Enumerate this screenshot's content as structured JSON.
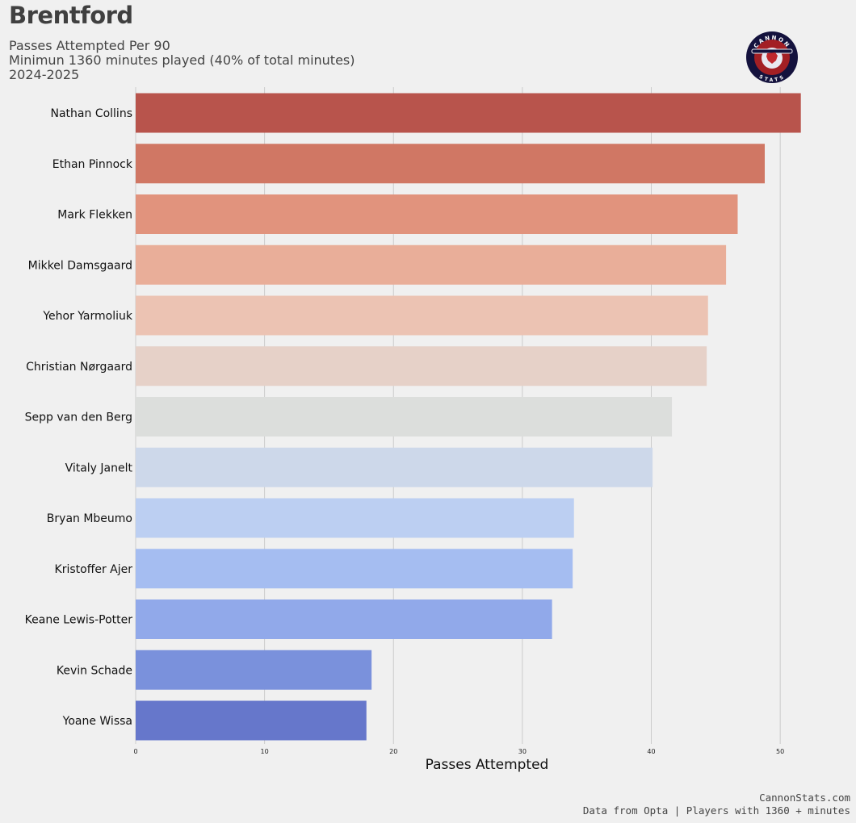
{
  "header": {
    "title": "Brentford",
    "subtitle_lines": [
      "Passes Attempted Per 90",
      "Minimun 1360 minutes played (40% of total minutes)",
      "2024-2025"
    ]
  },
  "logo": {
    "top_text": "CANNON",
    "bottom_text": "STATS",
    "colors": {
      "outer": "#14123d",
      "ring": "#a31f24",
      "inner": "#e8e8f0"
    }
  },
  "footer": {
    "line1": "CannonStats.com",
    "line2": "Data from Opta | Players with 1360 + minutes"
  },
  "chart_data": {
    "type": "bar",
    "orientation": "horizontal",
    "title": "Passes Attempted Per 90",
    "xlabel": "Passes Attempted",
    "ylabel": "",
    "xlim": [
      0,
      54
    ],
    "xticks": [
      0,
      10,
      20,
      30,
      40,
      50
    ],
    "grid": "vertical",
    "categories": [
      "Nathan Collins",
      "Ethan Pinnock",
      "Mark Flekken",
      "Mikkel Damsgaard",
      "Yehor Yarmoliuk",
      "Christian Nørgaard",
      "Sepp van den Berg",
      "Vitaly Janelt",
      "Bryan Mbeumo",
      "Kristoffer Ajer",
      "Keane Lewis-Potter",
      "Kevin Schade",
      "Yoane Wissa"
    ],
    "values": [
      51.6,
      48.8,
      46.7,
      45.8,
      44.4,
      44.3,
      41.6,
      40.1,
      34.0,
      33.9,
      32.3,
      18.3,
      17.9
    ],
    "colors": [
      "#b8544c",
      "#d07764",
      "#e1937d",
      "#e9ae99",
      "#ecc3b3",
      "#e6d1c8",
      "#dcdedc",
      "#cdd8ea",
      "#bccff2",
      "#a5bdf1",
      "#91a9ea",
      "#7a91dc",
      "#6677cb"
    ]
  }
}
